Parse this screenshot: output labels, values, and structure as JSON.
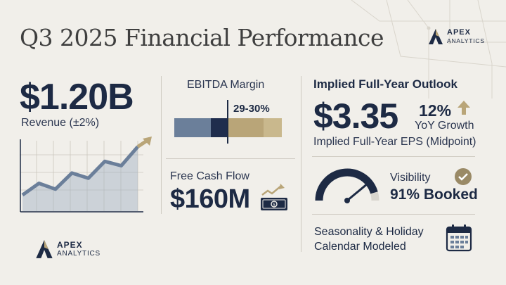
{
  "header": {
    "title": "Q3 2025 Financial Performance"
  },
  "brand": {
    "name_line1": "APEX",
    "name_line2": "ANALYTICS"
  },
  "revenue": {
    "value": "$1.20B",
    "label": "Revenue (±2%)",
    "trend_points": [
      0.22,
      0.38,
      0.3,
      0.52,
      0.45,
      0.68,
      0.62,
      0.88
    ]
  },
  "ebitda": {
    "label": "EBITDA Margin",
    "range": "29-30%",
    "segments": [
      {
        "value": 34,
        "color": "#6b7f9a"
      },
      {
        "value": 16,
        "color": "#1f2d4d"
      },
      {
        "value": 33,
        "color": "#b9a578"
      },
      {
        "value": 17,
        "color": "#c9b88d"
      }
    ]
  },
  "fcf": {
    "label": "Free Cash Flow",
    "value": "$160M"
  },
  "outlook": {
    "title": "Implied Full-Year Outlook",
    "eps_value": "$3.35",
    "eps_label": "Implied Full-Year EPS (Midpoint)",
    "growth_pct": "12%",
    "growth_label": "YoY Growth"
  },
  "visibility": {
    "label": "Visibility",
    "value": "91% Booked",
    "percent": 91
  },
  "seasonality": {
    "line1": "Seasonality & Holiday",
    "line2": "Calendar Modeled"
  },
  "colors": {
    "navy": "#1d2a44",
    "slate": "#6b7f9a",
    "gold": "#b9a578",
    "background": "#f1efea"
  }
}
